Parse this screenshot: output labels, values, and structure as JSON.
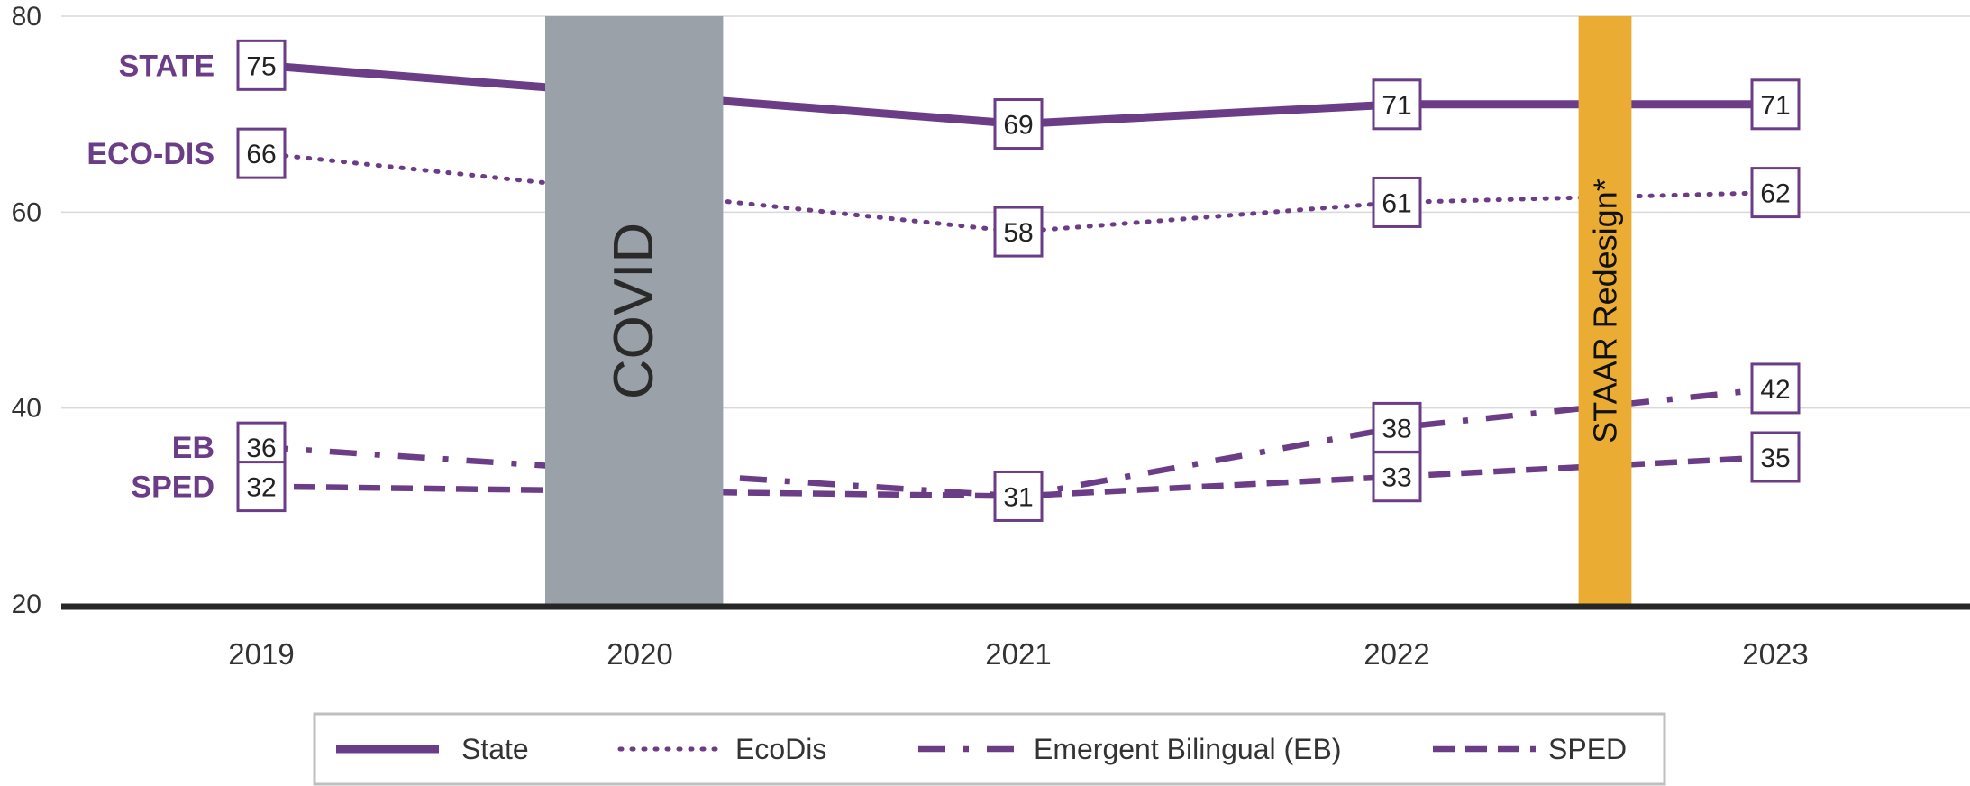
{
  "chart_data": {
    "type": "line",
    "title": "",
    "xlabel": "",
    "ylabel": "",
    "x": [
      "2019",
      "2020",
      "2021",
      "2022",
      "2023"
    ],
    "ylim": [
      20,
      80
    ],
    "yticks": [
      20,
      40,
      60,
      80
    ],
    "grid": true,
    "legend_position": "bottom",
    "series": [
      {
        "name": "State",
        "tag": "STATE",
        "style": "solid",
        "values": [
          75,
          null,
          69,
          71,
          71
        ],
        "labels": [
          "75",
          "",
          "69",
          "71",
          "71"
        ]
      },
      {
        "name": "EcoDis",
        "tag": "ECO-DIS",
        "style": "dotted",
        "values": [
          66,
          null,
          58,
          61,
          62
        ],
        "labels": [
          "66",
          "",
          "58",
          "61",
          "62"
        ]
      },
      {
        "name": "Emergent Bilingual (EB)",
        "tag": "EB",
        "style": "dashdot",
        "values": [
          36,
          null,
          31,
          38,
          42
        ],
        "labels": [
          "36",
          "",
          "31",
          "38",
          "42"
        ]
      },
      {
        "name": "SPED",
        "tag": "SPED",
        "style": "dashed",
        "values": [
          32,
          null,
          31,
          33,
          35
        ],
        "labels": [
          "32",
          "",
          "",
          "33",
          "35"
        ]
      }
    ],
    "annotations": [
      {
        "text": "COVID",
        "x_start": 1.75,
        "x_end": 2.22,
        "color": "#9aa1a8"
      },
      {
        "text": "STAAR Redesign*",
        "x_start": 4.48,
        "x_end": 4.62,
        "color": "#eaac32"
      }
    ]
  },
  "colors": {
    "series": "#6b3d87",
    "grid": "#d9d9d9",
    "axis": "#262626",
    "covid_band": "#9aa1a8",
    "staar_band": "#eaac32",
    "legend_border": "#bfbfbf"
  }
}
